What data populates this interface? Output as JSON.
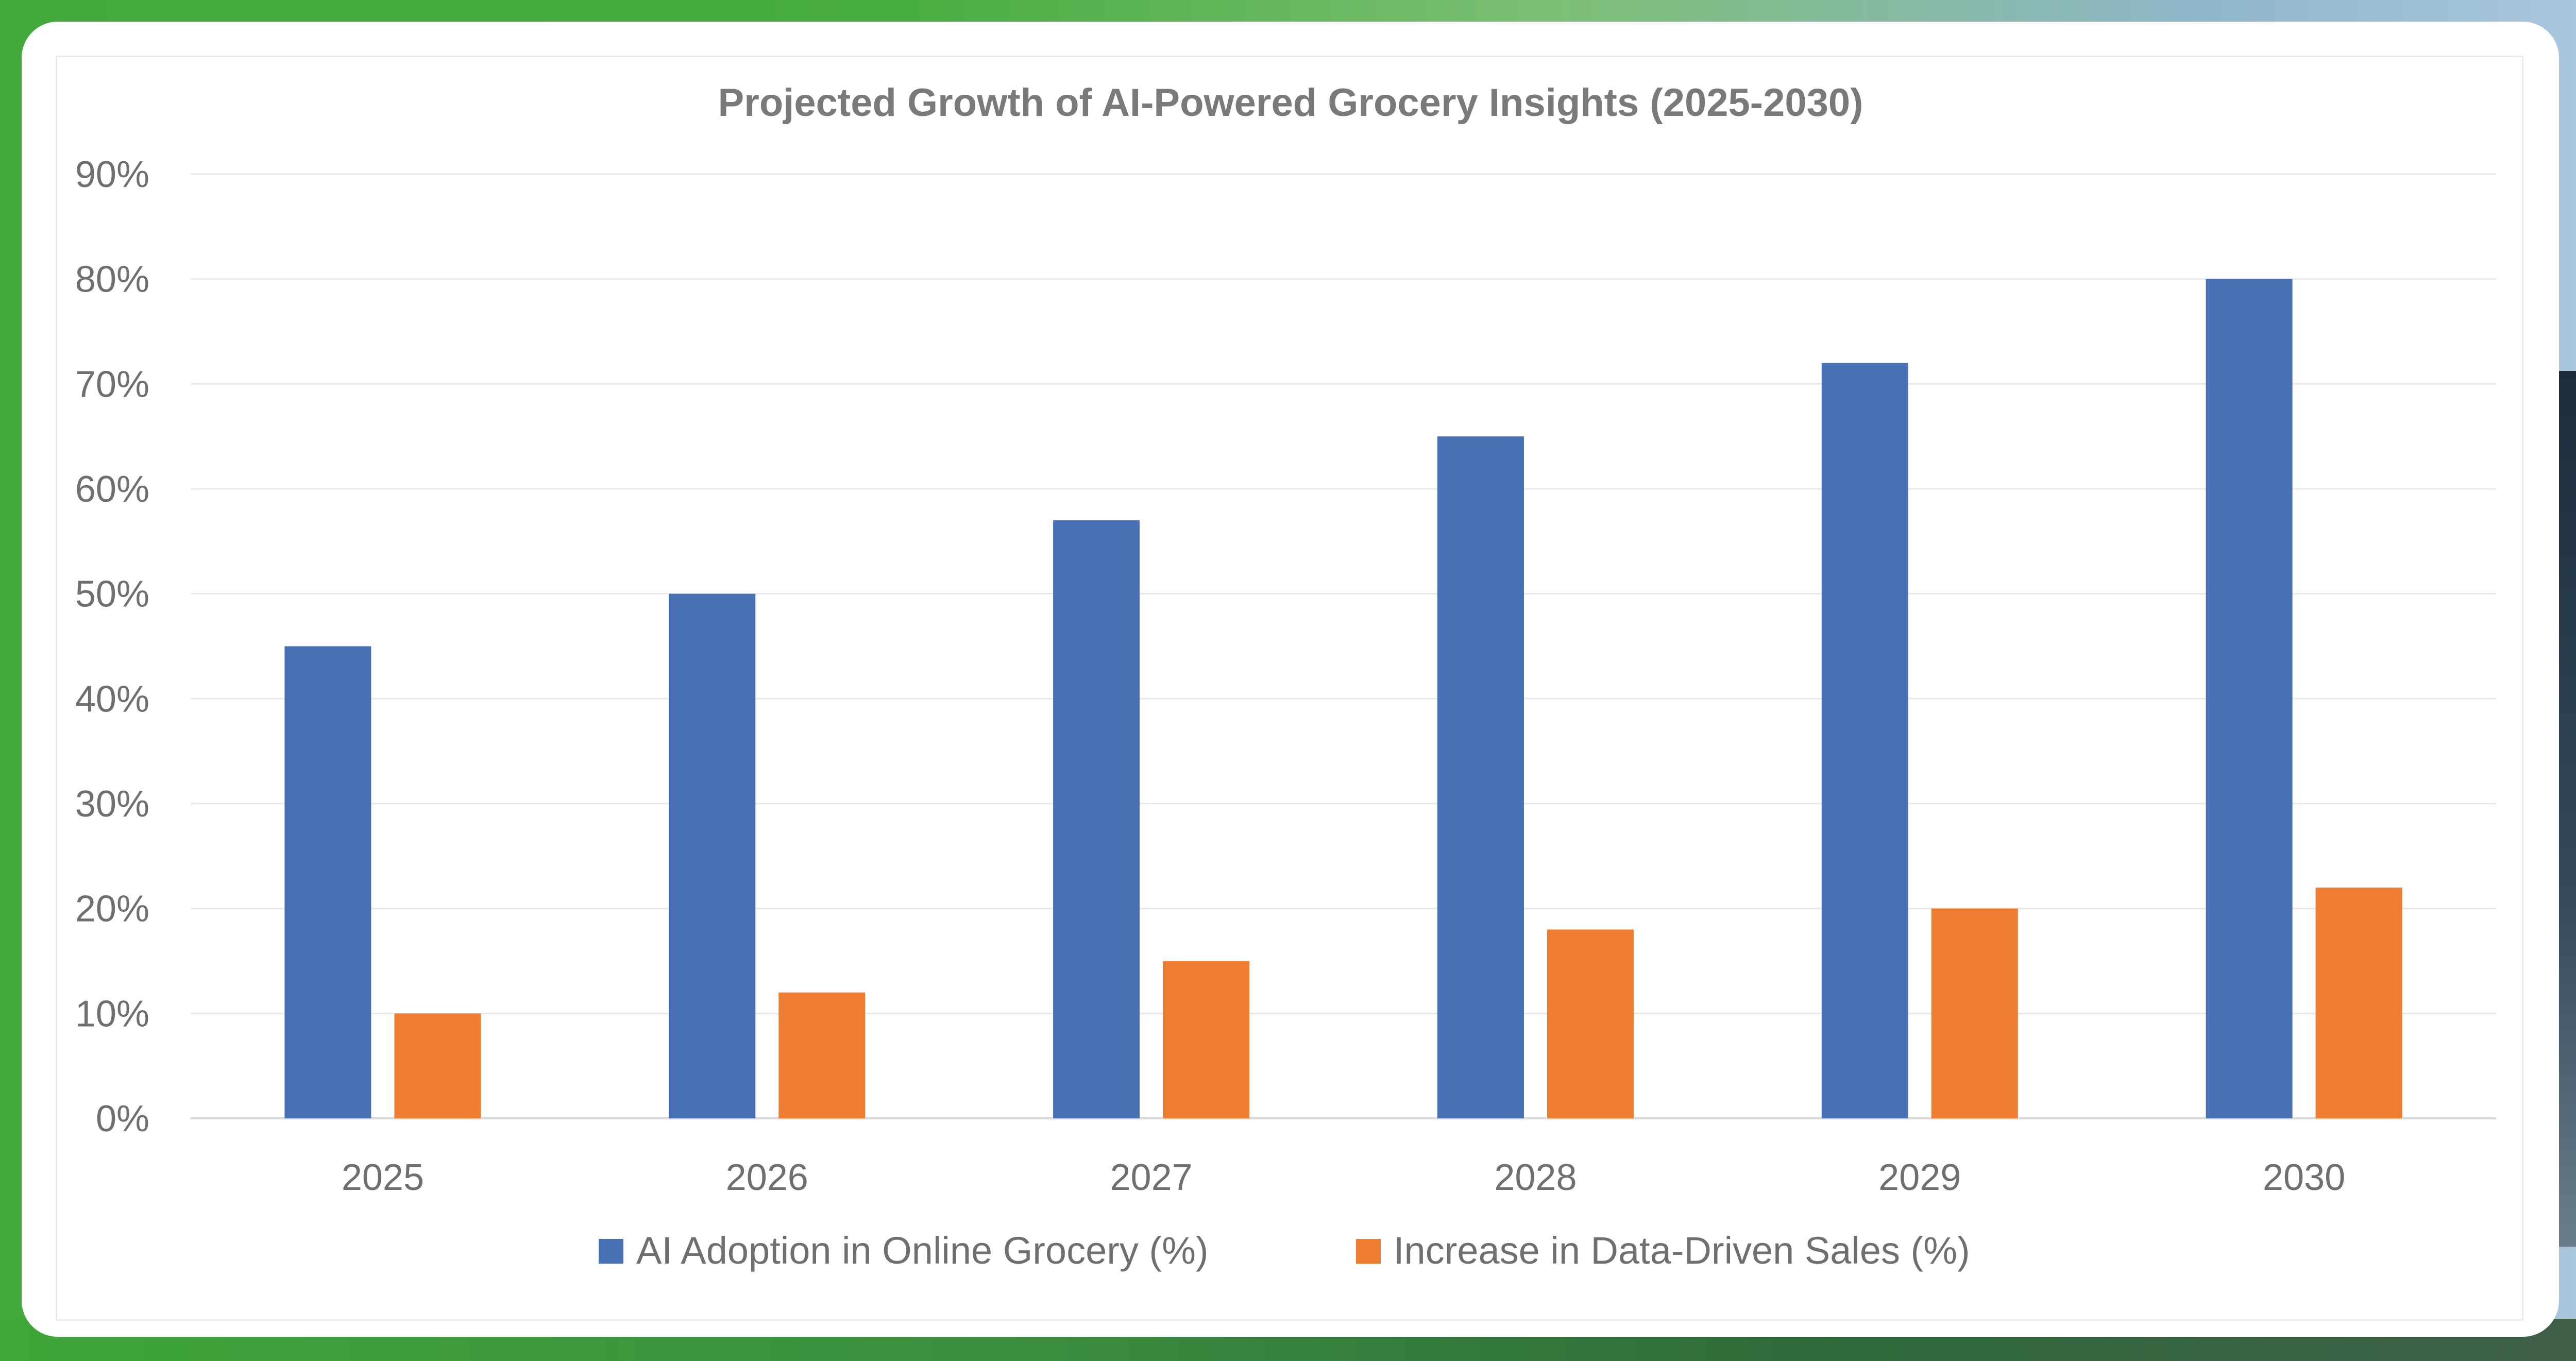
{
  "chart_data": {
    "type": "bar",
    "title": "Projected Growth of AI-Powered Grocery Insights (2025-2030)",
    "categories": [
      "2025",
      "2026",
      "2027",
      "2028",
      "2029",
      "2030"
    ],
    "series": [
      {
        "name": "AI Adoption in Online Grocery (%)",
        "color": "#4770b5",
        "values": [
          45,
          50,
          57,
          65,
          72,
          80
        ]
      },
      {
        "name": "Increase in Data-Driven Sales (%)",
        "color": "#ee7d32",
        "values": [
          10,
          12,
          15,
          18,
          20,
          22
        ]
      }
    ],
    "ylim": [
      0,
      90
    ],
    "yticks": [
      "0%",
      "10%",
      "20%",
      "30%",
      "40%",
      "50%",
      "60%",
      "70%",
      "80%",
      "90%"
    ],
    "grid": true,
    "legend_position": "bottom"
  }
}
